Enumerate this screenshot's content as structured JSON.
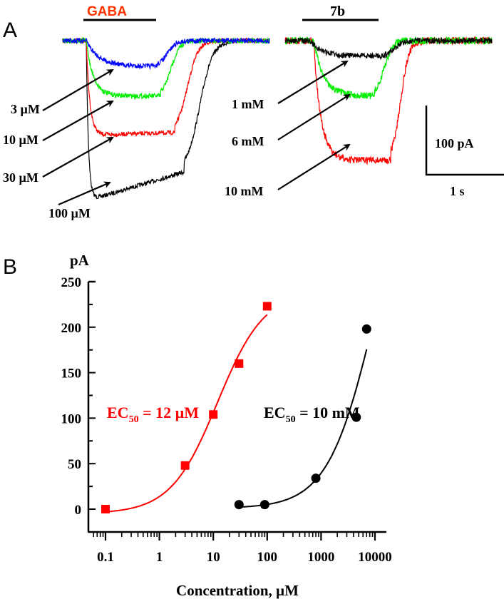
{
  "chart_data": [
    {
      "type": "line",
      "panel": "A",
      "title": "GABA",
      "description_units": {
        "y": "pA",
        "x": "s"
      },
      "bar_label": "GABA",
      "series": [
        {
          "name": "3 µM",
          "color": "#0000ff",
          "peak_pA": 37
        },
        {
          "name": "10 µM",
          "color": "#00ee00",
          "peak_pA": 80
        },
        {
          "name": "30 µM",
          "color": "#ff0000",
          "peak_pA": 137
        },
        {
          "name": "100 µM",
          "color": "#000000",
          "peak_pA": 190
        }
      ]
    },
    {
      "type": "line",
      "panel": "A",
      "title": "7b",
      "bar_label": "7b",
      "series": [
        {
          "name": "1 mM",
          "color": "#000000",
          "peak_pA": 22
        },
        {
          "name": "6 mM",
          "color": "#00ee00",
          "peak_pA": 80
        },
        {
          "name": "10 mM",
          "color": "#ff0000",
          "peak_pA": 173
        }
      ],
      "scale_bar": {
        "y_label": "100 pA",
        "x_label": "1 s"
      }
    },
    {
      "type": "scatter",
      "panel": "B",
      "ylabel": "pA",
      "xlabel": "Concentration, µM",
      "xscale": "log",
      "xlim": [
        0.05,
        15000
      ],
      "ylim": [
        -25,
        250
      ],
      "yticks": [
        "0",
        "50",
        "100",
        "150",
        "200",
        "250"
      ],
      "xticks": [
        "0.1",
        "1",
        "10",
        "100",
        "1000",
        "10000"
      ],
      "series": [
        {
          "name": "GABA",
          "color": "#ff0000",
          "marker": "square",
          "x": [
            0.1,
            3,
            10,
            30,
            100
          ],
          "y": [
            0,
            48,
            104,
            160,
            223
          ],
          "fit": {
            "bottom": -5,
            "top": 240,
            "ec50": 12,
            "hill": 1,
            "range": [
              0.1,
              100
            ]
          },
          "annotation": {
            "pre": "EC",
            "sub": "50",
            "post": " = 12 µM"
          }
        },
        {
          "name": "7b",
          "color": "#000000",
          "marker": "circle",
          "x": [
            30,
            90,
            800,
            4500,
            7000
          ],
          "y": [
            5,
            5,
            34,
            101,
            198
          ],
          "fit": {
            "bottom": 1,
            "top": 425,
            "ec50": 10000,
            "hill": 1,
            "range": [
              30,
              7000
            ]
          },
          "annotation": {
            "pre": "EC",
            "sub": "50",
            "post": " = 10 mM"
          }
        }
      ]
    }
  ],
  "panels": {
    "a": "A",
    "b": "B"
  }
}
